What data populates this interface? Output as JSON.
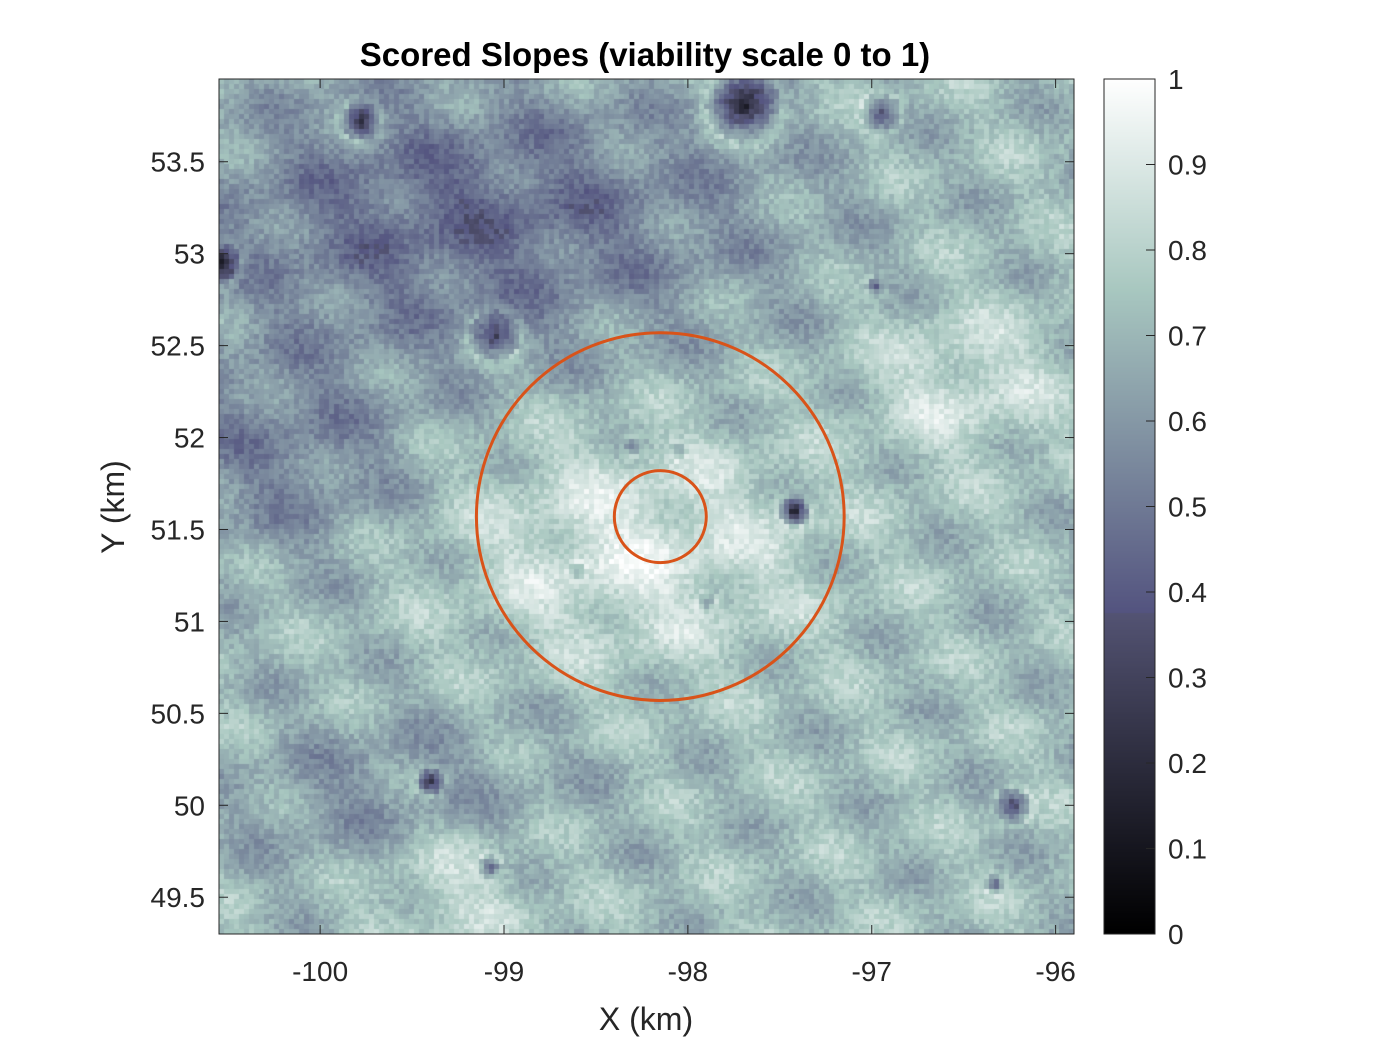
{
  "chart_data": {
    "type": "heatmap",
    "title": "Scored Slopes (viability scale 0 to 1)",
    "xlabel": "X (km)",
    "ylabel": "Y (km)",
    "xlim": [
      -100.55,
      -95.9
    ],
    "ylim": [
      49.3,
      53.95
    ],
    "xticks": [
      -100,
      -99,
      -98,
      -97,
      -96
    ],
    "yticks": [
      49.5,
      50,
      50.5,
      51,
      51.5,
      52,
      52.5,
      53,
      53.5
    ],
    "colorbar": {
      "range": [
        0,
        1
      ],
      "ticks": [
        0,
        0.1,
        0.2,
        0.3,
        0.4,
        0.5,
        0.6,
        0.7,
        0.8,
        0.9,
        1
      ],
      "colormap": "bone"
    },
    "overlays": [
      {
        "type": "circle",
        "center": [
          -98.15,
          51.57
        ],
        "radius": 0.25,
        "color": "#d95319"
      },
      {
        "type": "circle",
        "center": [
          -98.15,
          51.57
        ],
        "radius": 1.0,
        "color": "#d95319"
      }
    ],
    "craters": [
      {
        "x": -99.78,
        "y": 53.72,
        "r": 0.11,
        "depth": 0.45
      },
      {
        "x": -97.7,
        "y": 53.8,
        "r": 0.2,
        "depth": 0.55
      },
      {
        "x": -96.95,
        "y": 53.76,
        "r": 0.11,
        "depth": 0.35
      },
      {
        "x": -100.55,
        "y": 52.95,
        "r": 0.12,
        "depth": 0.5
      },
      {
        "x": -99.05,
        "y": 52.55,
        "r": 0.14,
        "depth": 0.4
      },
      {
        "x": -97.42,
        "y": 51.6,
        "r": 0.09,
        "depth": 0.6
      },
      {
        "x": -99.4,
        "y": 50.13,
        "r": 0.08,
        "depth": 0.45
      },
      {
        "x": -96.23,
        "y": 50.0,
        "r": 0.1,
        "depth": 0.4
      },
      {
        "x": -99.08,
        "y": 49.66,
        "r": 0.07,
        "depth": 0.35
      },
      {
        "x": -96.33,
        "y": 49.57,
        "r": 0.06,
        "depth": 0.35
      },
      {
        "x": -96.98,
        "y": 52.83,
        "r": 0.05,
        "depth": 0.3
      },
      {
        "x": -98.3,
        "y": 51.95,
        "r": 0.05,
        "depth": 0.2
      },
      {
        "x": -98.05,
        "y": 51.93,
        "r": 0.05,
        "depth": 0.2
      },
      {
        "x": -98.6,
        "y": 51.27,
        "r": 0.05,
        "depth": 0.2
      },
      {
        "x": -97.9,
        "y": 51.1,
        "r": 0.05,
        "depth": 0.2
      }
    ]
  }
}
